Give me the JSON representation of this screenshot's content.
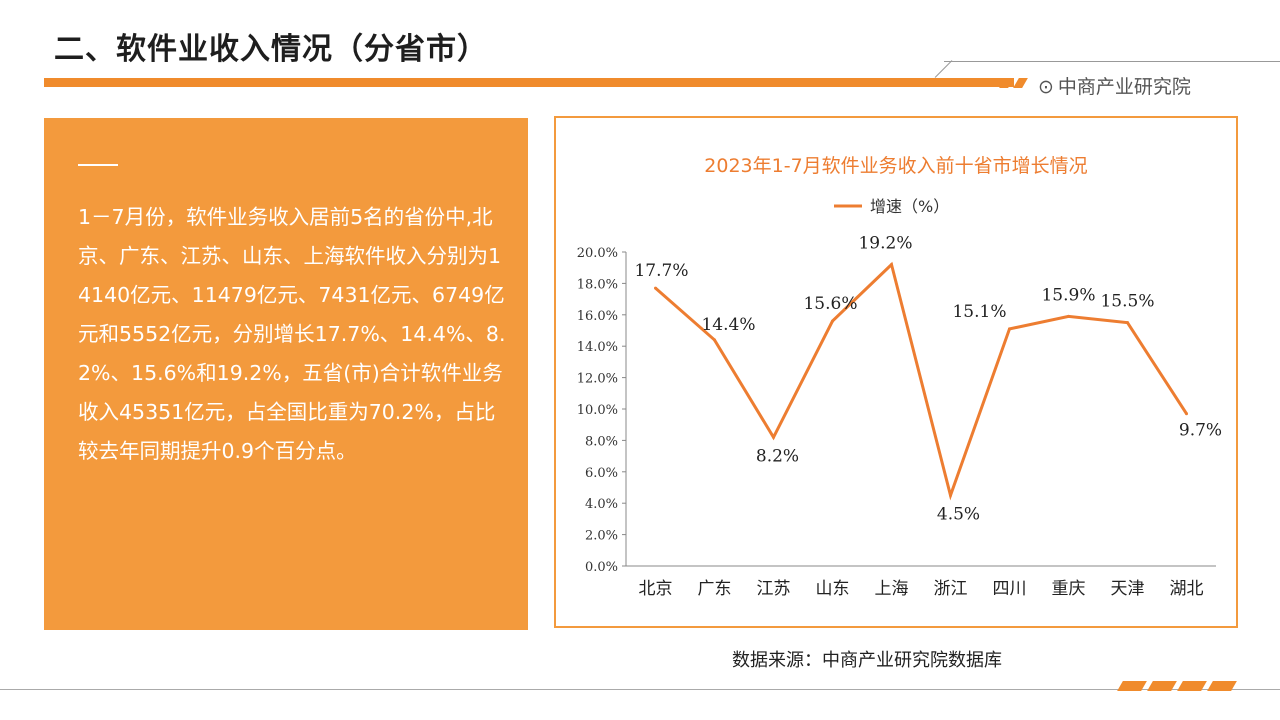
{
  "header": {
    "title": "二、软件业收入情况（分省市）",
    "brand": "中商产业研究院",
    "brand_icon": "target-icon"
  },
  "left_panel": {
    "text": "1－7月份，软件业务收入居前5名的省份中,北京、广东、江苏、山东、上海软件收入分别为14140亿元、11479亿元、7431亿元、6749亿元和5552亿元，分别增长17.7%、14.4%、8.2%、15.6%和19.2%，五省(市)合计软件业务收入45351亿元，占全国比重为70.2%，占比较去年同期提升0.9个百分点。"
  },
  "footer": {
    "source": "数据来源：中商产业研究院数据库"
  },
  "colors": {
    "accent": "#f08b2c",
    "panel": "#f39a3d",
    "line": "#ed7d31",
    "title": "#ed7d31"
  },
  "chart_data": {
    "type": "line",
    "title": "2023年1-7月软件业务收入前十省市增长情况",
    "categories": [
      "北京",
      "广东",
      "江苏",
      "山东",
      "上海",
      "浙江",
      "四川",
      "重庆",
      "天津",
      "湖北"
    ],
    "series": [
      {
        "name": "增速（%）",
        "values": [
          17.7,
          14.4,
          8.2,
          15.6,
          19.2,
          4.5,
          15.1,
          15.9,
          15.5,
          9.7
        ]
      }
    ],
    "data_labels": [
      "17.7%",
      "14.4%",
      "8.2%",
      "15.6%",
      "19.2%",
      "4.5%",
      "15.1%",
      "15.9%",
      "15.5%",
      "9.7%"
    ],
    "y_ticks": [
      "0.0%",
      "2.0%",
      "4.0%",
      "6.0%",
      "8.0%",
      "10.0%",
      "12.0%",
      "14.0%",
      "16.0%",
      "18.0%",
      "20.0%"
    ],
    "ylim": [
      0,
      20
    ],
    "legend_position": "top",
    "grid": false
  }
}
